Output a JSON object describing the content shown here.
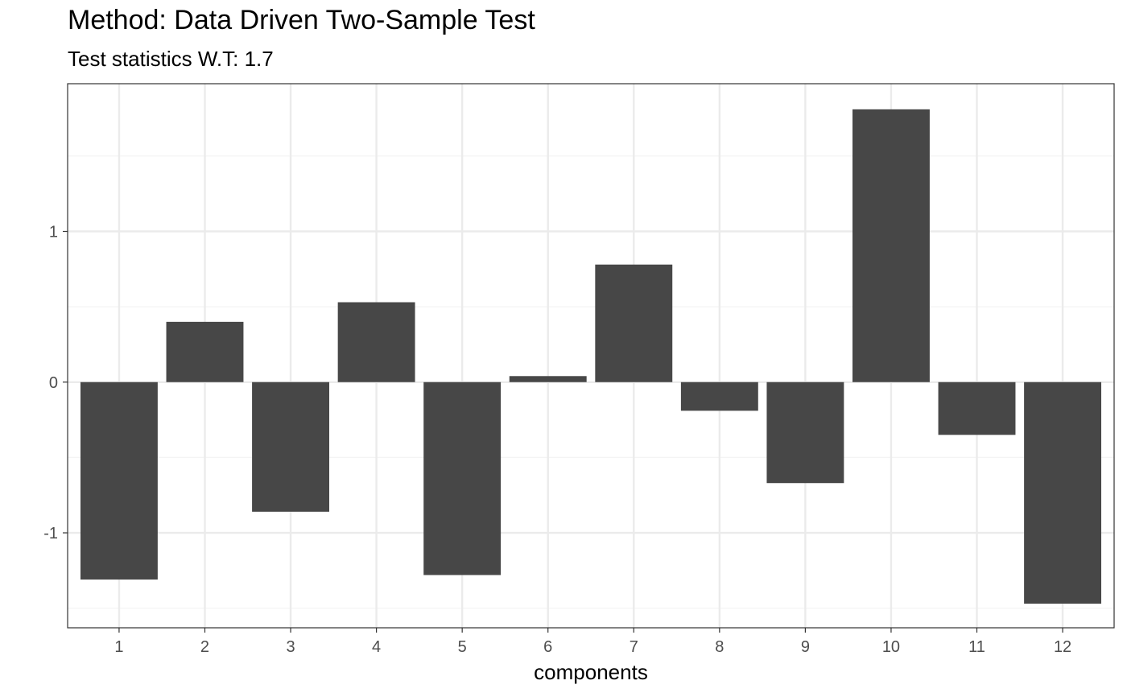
{
  "chart_data": {
    "type": "bar",
    "title": "Method: Data Driven Two-Sample Test",
    "subtitle": "Test statistics W.T: 1.7",
    "xlabel": "components",
    "ylabel": "",
    "categories": [
      "1",
      "2",
      "3",
      "4",
      "5",
      "6",
      "7",
      "8",
      "9",
      "10",
      "11",
      "12"
    ],
    "values": [
      -1.31,
      0.4,
      -0.86,
      0.53,
      -1.28,
      0.04,
      0.78,
      -0.19,
      -0.67,
      1.81,
      -0.35,
      -1.47
    ],
    "yticks": [
      -1,
      0,
      1
    ],
    "ylim": [
      -1.63,
      1.98
    ],
    "grid": true,
    "legend": "none",
    "colors": {
      "bar": "#474747",
      "grid_major": "#ebebeb",
      "grid_minor": "#f4f4f4",
      "panel_border": "#333333"
    }
  }
}
